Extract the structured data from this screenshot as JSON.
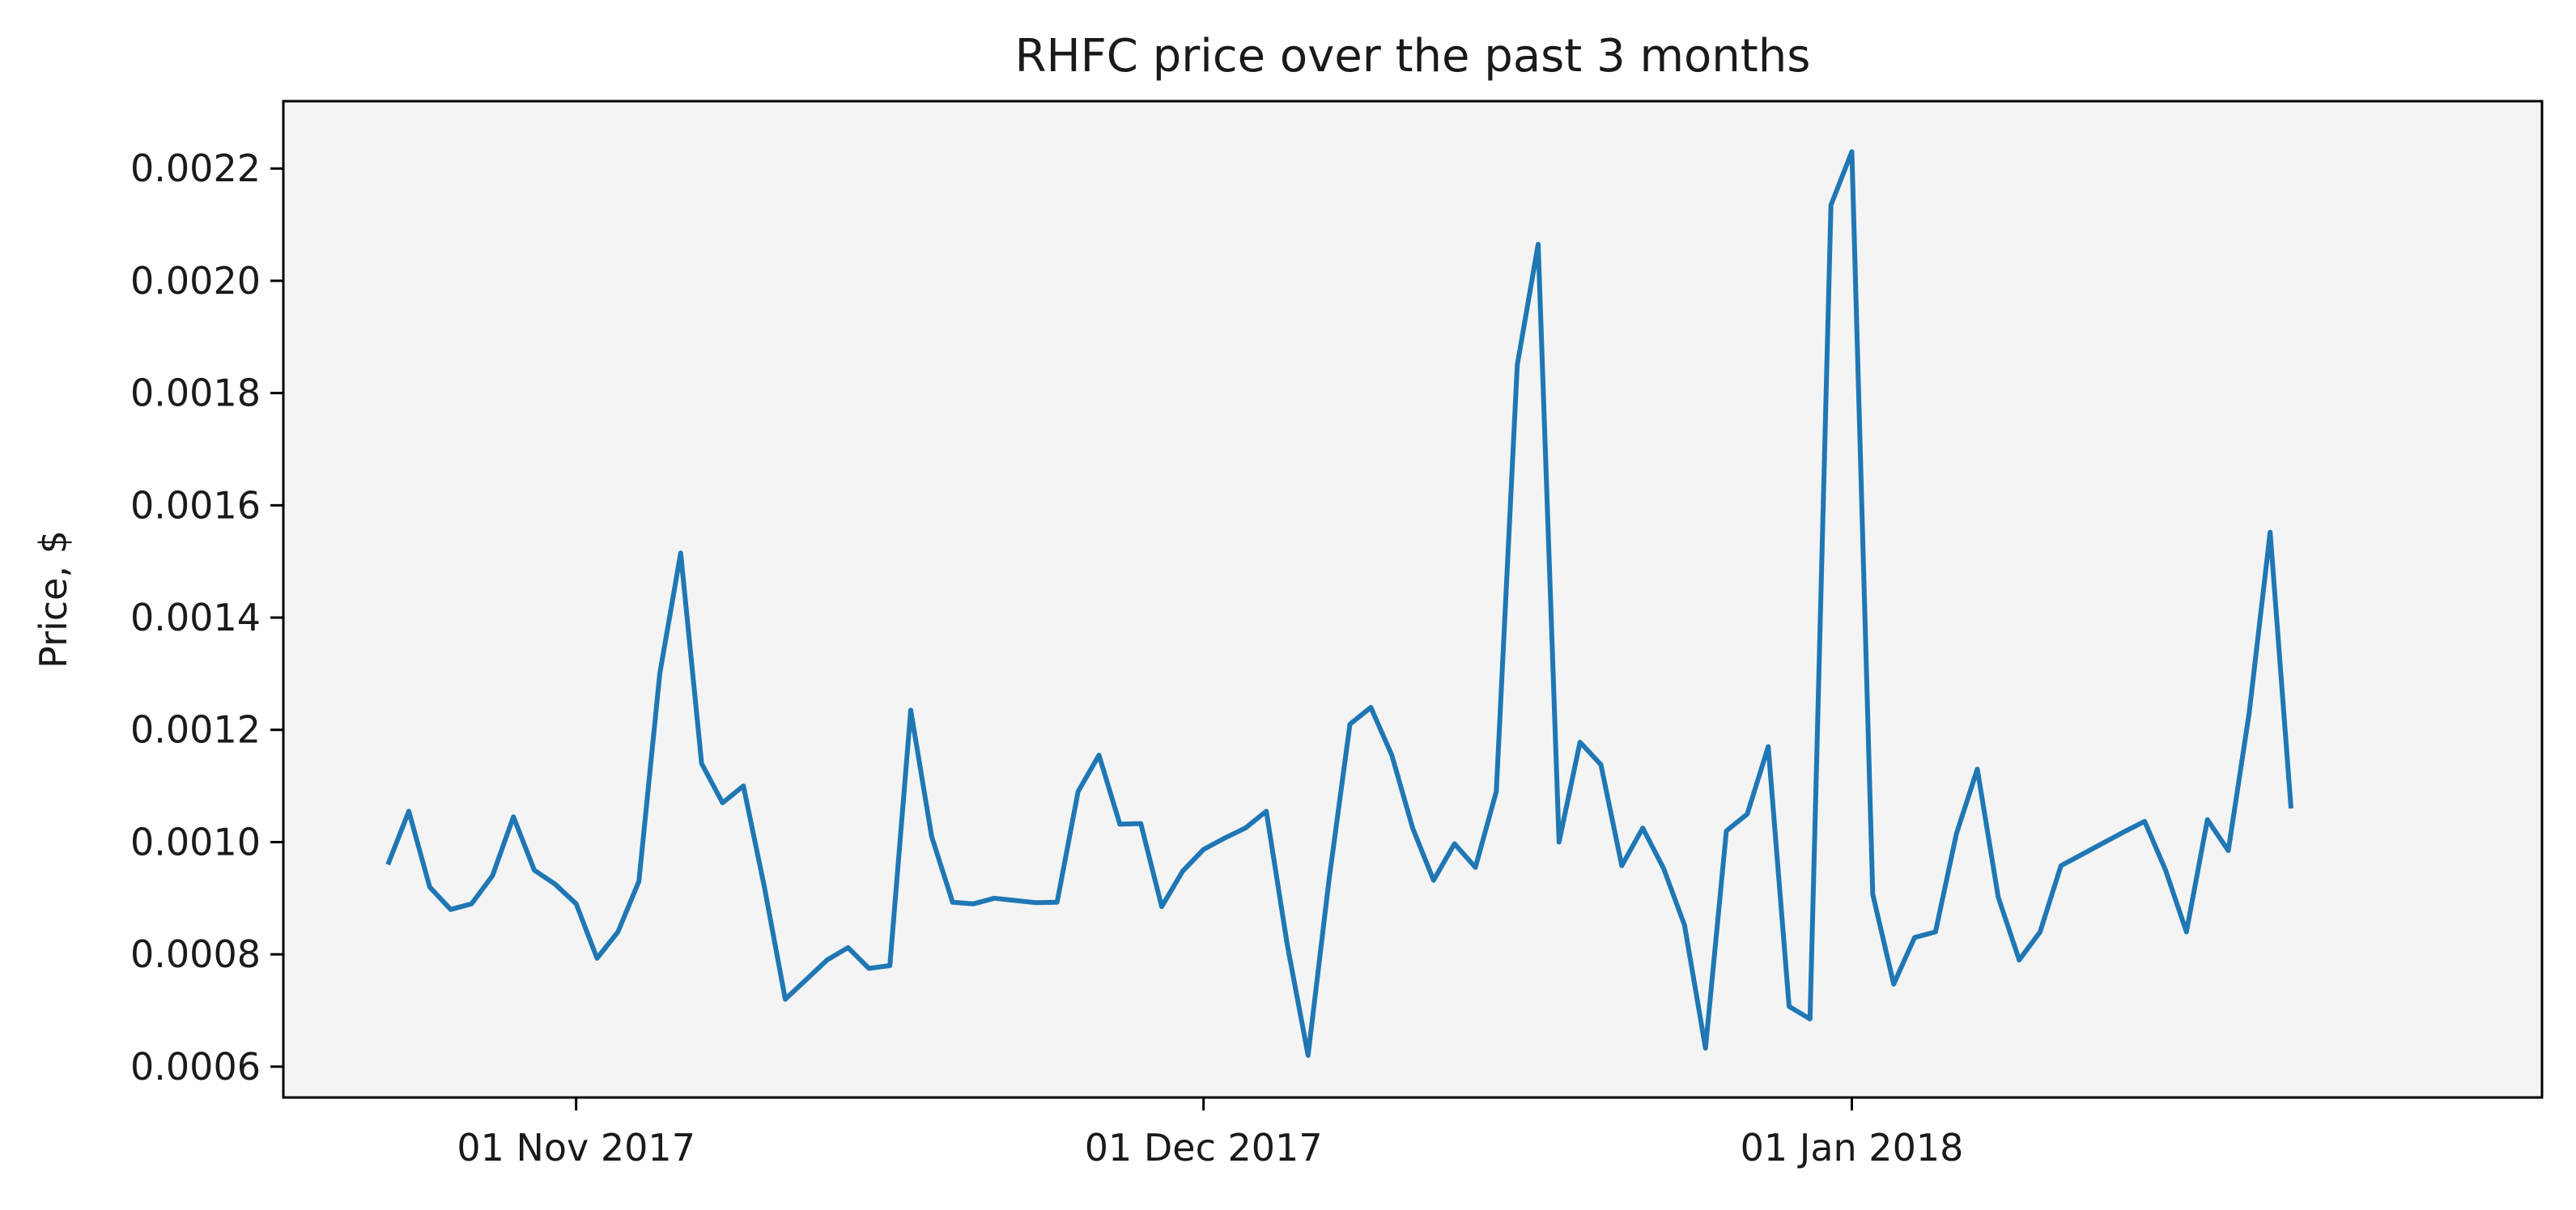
{
  "chart_data": {
    "type": "line",
    "title": "RHFC price over the past 3 months",
    "xlabel": "",
    "ylabel": "Price, $",
    "x_tick_labels": [
      "01 Nov 2017",
      "01 Dec 2017",
      "01 Jan 2018"
    ],
    "x_tick_dates": [
      "2017-11-01",
      "2017-12-01",
      "2018-01-01"
    ],
    "y_ticks": [
      0.0006,
      0.0008,
      0.001,
      0.0012,
      0.0014,
      0.0016,
      0.0018,
      0.002,
      0.0022
    ],
    "y_tick_labels": [
      "0.0006",
      "0.0008",
      "0.0010",
      "0.0012",
      "0.0014",
      "0.0016",
      "0.0018",
      "0.0020",
      "0.0022"
    ],
    "xlim": [
      "2017-10-18",
      "2018-02-03"
    ],
    "ylim": [
      0.000545,
      0.00232
    ],
    "grid": false,
    "background": "#f4f4f4",
    "line_color": "#1f77b4",
    "series": [
      {
        "x": [
          "2017-10-23",
          "2017-10-24",
          "2017-10-25",
          "2017-10-26",
          "2017-10-27",
          "2017-10-28",
          "2017-10-29",
          "2017-10-30",
          "2017-10-31",
          "2017-11-01",
          "2017-11-02",
          "2017-11-03",
          "2017-11-04",
          "2017-11-05",
          "2017-11-06",
          "2017-11-07",
          "2017-11-08",
          "2017-11-09",
          "2017-11-10",
          "2017-11-11",
          "2017-11-12",
          "2017-11-13",
          "2017-11-14",
          "2017-11-15",
          "2017-11-16",
          "2017-11-17",
          "2017-11-18",
          "2017-11-19",
          "2017-11-20",
          "2017-11-21",
          "2017-11-22",
          "2017-11-23",
          "2017-11-24",
          "2017-11-25",
          "2017-11-26",
          "2017-11-27",
          "2017-11-28",
          "2017-11-29",
          "2017-11-30",
          "2017-12-01",
          "2017-12-02",
          "2017-12-03",
          "2017-12-04",
          "2017-12-05",
          "2017-12-06",
          "2017-12-07",
          "2017-12-08",
          "2017-12-09",
          "2017-12-10",
          "2017-12-11",
          "2017-12-12",
          "2017-12-13",
          "2017-12-14",
          "2017-12-15",
          "2017-12-16",
          "2017-12-17",
          "2017-12-18",
          "2017-12-19",
          "2017-12-20",
          "2017-12-21",
          "2017-12-22",
          "2017-12-23",
          "2017-12-24",
          "2017-12-25",
          "2017-12-26",
          "2017-12-27",
          "2017-12-28",
          "2017-12-29",
          "2017-12-30",
          "2017-12-31",
          "2018-01-01",
          "2018-01-02",
          "2018-01-03",
          "2018-01-04",
          "2018-01-05",
          "2018-01-06",
          "2018-01-07",
          "2018-01-08",
          "2018-01-09",
          "2018-01-10",
          "2018-01-11",
          "2018-01-12",
          "2018-01-13",
          "2018-01-14",
          "2018-01-15",
          "2018-01-16",
          "2018-01-17",
          "2018-01-18",
          "2018-01-19",
          "2018-01-20",
          "2018-01-21",
          "2018-01-22"
        ],
        "y": [
          0.00096,
          0.001055,
          0.00092,
          0.00088,
          0.00089,
          0.00094,
          0.001045,
          0.00095,
          0.000925,
          0.00089,
          0.000793,
          0.00084,
          0.00093,
          0.0013,
          0.001515,
          0.00114,
          0.00107,
          0.0011,
          0.00092,
          0.00072,
          0.000755,
          0.00079,
          0.000812,
          0.000775,
          0.00078,
          0.001235,
          0.00101,
          0.000893,
          0.00089,
          0.0009,
          0.000896,
          0.000892,
          0.000893,
          0.00109,
          0.001155,
          0.001032,
          0.001033,
          0.000885,
          0.000948,
          0.000987,
          0.001007,
          0.001025,
          0.001055,
          0.000818,
          0.00062,
          0.000933,
          0.00121,
          0.00124,
          0.001155,
          0.001025,
          0.000932,
          0.000997,
          0.000955,
          0.00109,
          0.00185,
          0.002065,
          0.001,
          0.001178,
          0.001138,
          0.000958,
          0.001025,
          0.000953,
          0.000852,
          0.000633,
          0.00102,
          0.00105,
          0.00117,
          0.000707,
          0.000685,
          0.002135,
          0.00223,
          0.000907,
          0.000747,
          0.00083,
          0.00084,
          0.001015,
          0.00113,
          0.000902,
          0.00079,
          0.00084,
          0.000958,
          0.000978,
          0.000998,
          0.001018,
          0.001037,
          0.00095,
          0.00084,
          0.00104,
          0.000985,
          0.00123,
          0.001552,
          0.00106
        ]
      }
    ]
  }
}
